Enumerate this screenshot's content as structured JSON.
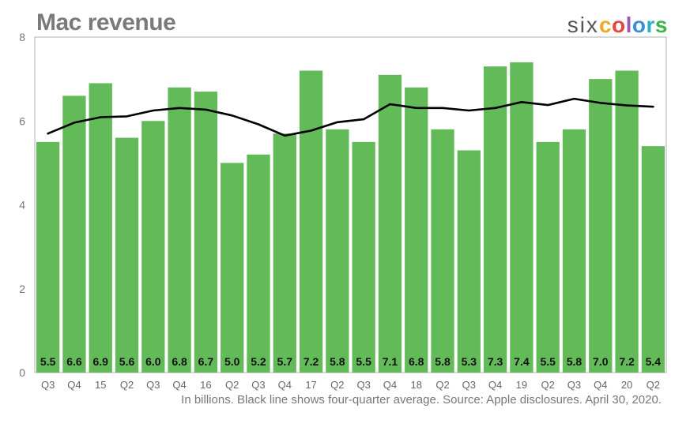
{
  "header": {
    "title": "Mac revenue",
    "brand_six": "six",
    "brand_colors": [
      {
        "letter": "c",
        "color": "#f5a623"
      },
      {
        "letter": "o",
        "color": "#e8453c"
      },
      {
        "letter": "l",
        "color": "#9b59b6"
      },
      {
        "letter": "o",
        "color": "#3b8fd9"
      },
      {
        "letter": "r",
        "color": "#2ab0c9"
      },
      {
        "letter": "s",
        "color": "#3cb54a"
      }
    ]
  },
  "caption": "In billions. Black line shows four-quarter average. Source: Apple disclosures. April 30, 2020.",
  "colors": {
    "bar": "#62bb58",
    "line": "#000000",
    "axis": "#b0b0b0",
    "label": "#111111"
  },
  "chart_data": {
    "type": "bar",
    "title": "Mac revenue",
    "categories": [
      "Q3",
      "Q4",
      "15",
      "Q2",
      "Q3",
      "Q4",
      "16",
      "Q2",
      "Q3",
      "Q4",
      "17",
      "Q2",
      "Q3",
      "Q4",
      "18",
      "Q2",
      "Q3",
      "Q4",
      "19",
      "Q2",
      "Q3",
      "Q4",
      "20",
      "Q2"
    ],
    "values": [
      5.5,
      6.6,
      6.9,
      5.6,
      6.0,
      6.8,
      6.7,
      5.0,
      5.2,
      5.7,
      7.2,
      5.8,
      5.5,
      7.1,
      6.8,
      5.8,
      5.3,
      7.3,
      7.4,
      5.5,
      5.8,
      7.0,
      7.2,
      5.4
    ],
    "value_labels": [
      "5.5",
      "6.6",
      "6.9",
      "5.6",
      "6.0",
      "6.8",
      "6.7",
      "5.0",
      "5.2",
      "5.7",
      "7.2",
      "5.8",
      "5.5",
      "7.1",
      "6.8",
      "5.8",
      "5.3",
      "7.3",
      "7.4",
      "5.5",
      "5.8",
      "7.0",
      "7.2",
      "5.4"
    ],
    "series": [
      {
        "values": [
          5.5,
          6.6,
          6.9,
          5.6,
          6.0,
          6.8,
          6.7,
          5.0,
          5.2,
          5.7,
          7.2,
          5.8,
          5.5,
          7.1,
          6.8,
          5.8,
          5.3,
          7.3,
          7.4,
          5.5,
          5.8,
          7.0,
          7.2,
          5.4
        ]
      },
      {
        "values": [
          5.7,
          5.96,
          6.09,
          6.11,
          6.25,
          6.31,
          6.27,
          6.13,
          5.92,
          5.65,
          5.77,
          5.97,
          6.04,
          6.4,
          6.31,
          6.31,
          6.25,
          6.31,
          6.45,
          6.38,
          6.53,
          6.43,
          6.37,
          6.34
        ],
        "type": "line"
      }
    ],
    "y_ticks": [
      "0",
      "2",
      "4",
      "6",
      "8"
    ],
    "ylim": [
      0,
      8
    ],
    "xlabel": "",
    "ylabel": "",
    "grid": false
  }
}
